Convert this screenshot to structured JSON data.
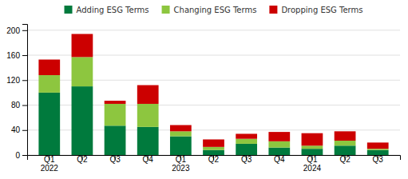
{
  "chart_data": {
    "type": "bar",
    "stacked": true,
    "categories": [
      "Q1\n2022",
      "Q2",
      "Q3",
      "Q4",
      "Q1\n2023",
      "Q2",
      "Q3",
      "Q4",
      "Q1\n2024",
      "Q2",
      "Q3"
    ],
    "series": [
      {
        "name": "Adding ESG Terms",
        "color": "#007A3D",
        "values": [
          100,
          110,
          47,
          45,
          30,
          8,
          18,
          12,
          10,
          15,
          8
        ]
      },
      {
        "name": "Changing ESG Terms",
        "color": "#8DC63F",
        "values": [
          28,
          47,
          35,
          37,
          8,
          5,
          8,
          10,
          5,
          8,
          2
        ]
      },
      {
        "name": "Dropping ESG Terms",
        "color": "#CC0000",
        "values": [
          25,
          37,
          5,
          30,
          10,
          12,
          8,
          15,
          20,
          15,
          10
        ]
      }
    ],
    "ylim": [
      0,
      210
    ],
    "yticks": [
      0,
      40,
      80,
      120,
      160,
      200
    ],
    "grid": true,
    "legend": "top"
  }
}
